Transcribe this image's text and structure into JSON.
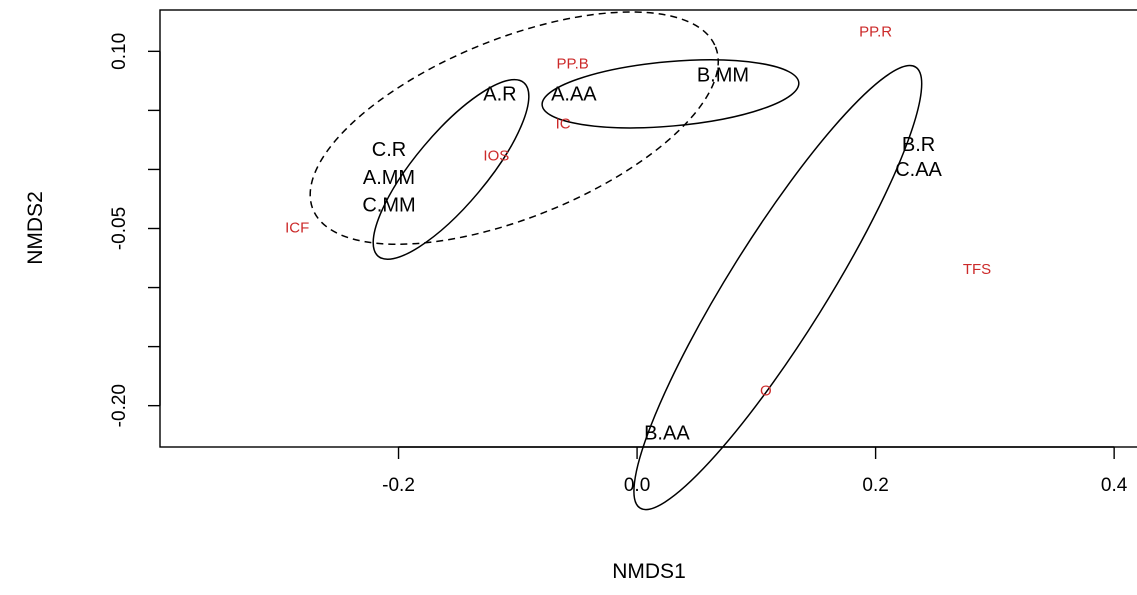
{
  "chart_data": {
    "type": "scatter",
    "xlabel": "NMDS1",
    "ylabel": "NMDS2",
    "xlim": [
      -0.4,
      0.42
    ],
    "ylim": [
      -0.235,
      0.135
    ],
    "x_ticks": [
      -0.2,
      0.0,
      0.2,
      0.4
    ],
    "x_tick_labels": [
      "-0.2",
      "0.0",
      "0.2",
      "0.4"
    ],
    "y_ticks": [
      0.1,
      -0.05,
      -0.2
    ],
    "y_tick_labels": [
      "0.10",
      "-0.05",
      "-0.20"
    ],
    "y_minor_ticks": [
      0.05,
      0.0,
      -0.1,
      -0.15
    ],
    "grid": false,
    "sample_color": "#000000",
    "variable_color": "#cc2a2a",
    "samples": [
      {
        "label": "A.R",
        "x": -0.115,
        "y": 0.063
      },
      {
        "label": "A.AA",
        "x": -0.053,
        "y": 0.063
      },
      {
        "label": "B.MM",
        "x": 0.072,
        "y": 0.079
      },
      {
        "label": "C.R",
        "x": -0.208,
        "y": 0.016
      },
      {
        "label": "A.MM",
        "x": -0.208,
        "y": -0.008
      },
      {
        "label": "C.MM",
        "x": -0.208,
        "y": -0.031
      },
      {
        "label": "B.R",
        "x": 0.236,
        "y": 0.02
      },
      {
        "label": "C.AA",
        "x": 0.236,
        "y": -0.001
      },
      {
        "label": "B.AA",
        "x": 0.025,
        "y": -0.224
      }
    ],
    "variables": [
      {
        "label": "PP.R",
        "x": 0.2,
        "y": 0.116
      },
      {
        "label": "PP.B",
        "x": -0.054,
        "y": 0.089
      },
      {
        "label": "IC",
        "x": -0.062,
        "y": 0.038
      },
      {
        "label": "IOS",
        "x": -0.118,
        "y": 0.011
      },
      {
        "label": "ICF",
        "x": -0.285,
        "y": -0.05
      },
      {
        "label": "TFS",
        "x": 0.285,
        "y": -0.085
      },
      {
        "label": "O",
        "x": 0.108,
        "y": -0.188
      }
    ],
    "ellipses": [
      {
        "style": "solid",
        "cx": -0.156,
        "cy": 0.0,
        "rx": 0.095,
        "ry": 0.03,
        "angle": 50
      },
      {
        "style": "solid",
        "cx": 0.028,
        "cy": 0.064,
        "rx": 0.108,
        "ry": 0.027,
        "angle": 5
      },
      {
        "style": "solid",
        "cx": 0.118,
        "cy": -0.1,
        "rx": 0.218,
        "ry": 0.041,
        "angle": 58
      },
      {
        "style": "dashed",
        "cx": -0.103,
        "cy": 0.035,
        "rx": 0.182,
        "ry": 0.075,
        "angle": 22
      }
    ]
  }
}
